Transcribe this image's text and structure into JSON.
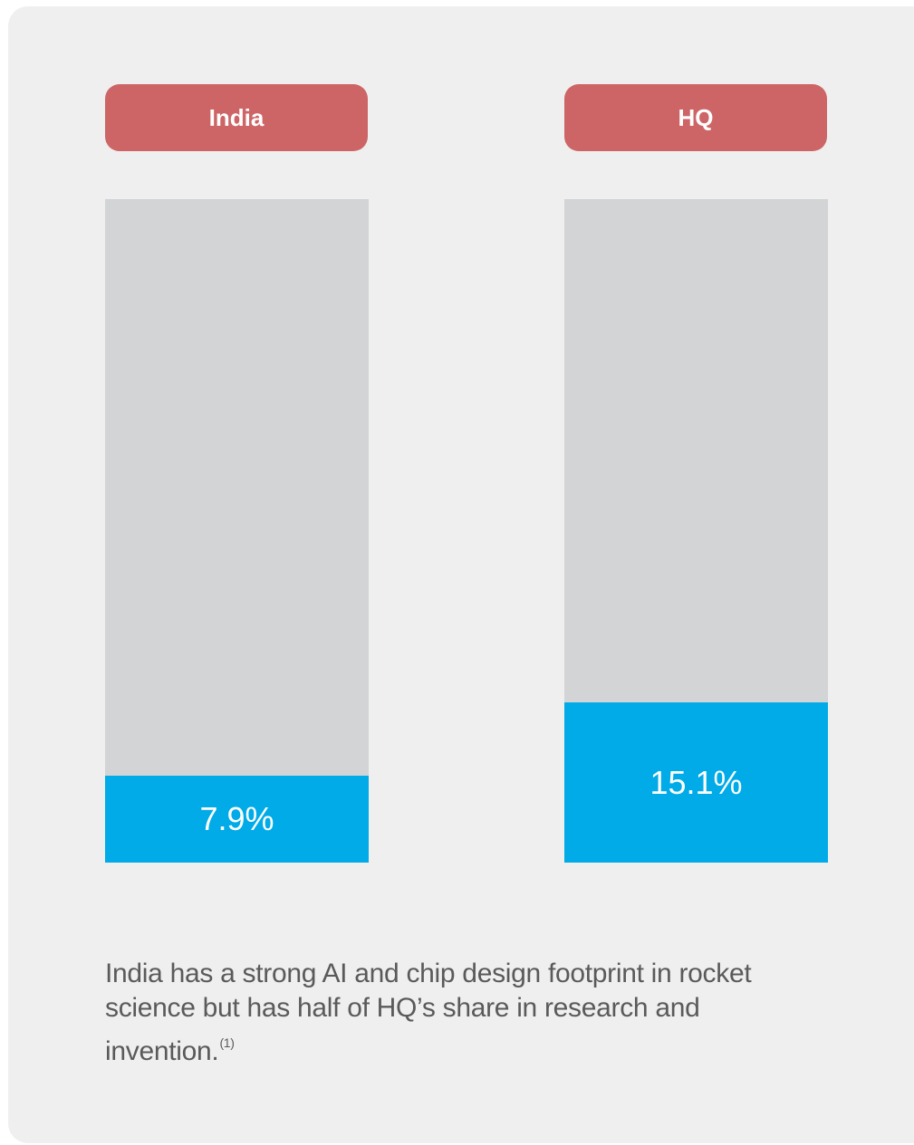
{
  "colors": {
    "card_bg": "#efefef",
    "header_bg": "#cd6566",
    "track": "#d3d4d6",
    "fill": "#00abe8",
    "caption_text": "#5a5a5a"
  },
  "chart_data": {
    "type": "bar",
    "categories": [
      "India",
      "HQ"
    ],
    "values": [
      7.9,
      15.1
    ],
    "value_labels": [
      "7.9%",
      "15.1%"
    ],
    "ylim": [
      0,
      100
    ],
    "grid": false,
    "legend": "none"
  },
  "caption": {
    "text": "India has a strong AI and chip design footprint in rocket science but has half of HQ’s share in research and invention.",
    "footnote": "(1)"
  }
}
